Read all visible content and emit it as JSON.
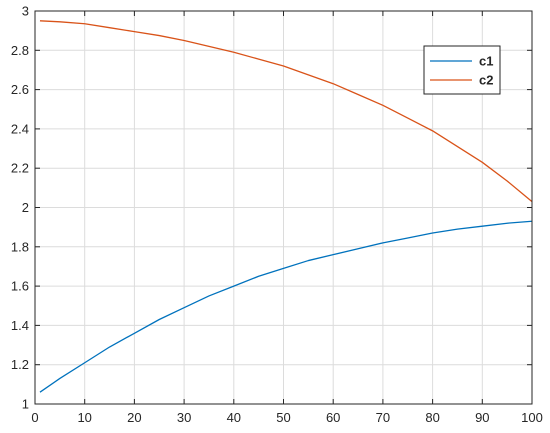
{
  "chart_data": {
    "type": "line",
    "title": "",
    "xlabel": "",
    "ylabel": "",
    "xlim": [
      0,
      100
    ],
    "ylim": [
      1,
      3
    ],
    "grid": true,
    "legend_position": "top-right",
    "xticks": [
      0,
      10,
      20,
      30,
      40,
      50,
      60,
      70,
      80,
      90,
      100
    ],
    "yticks": [
      1,
      1.2,
      1.4,
      1.6,
      1.8,
      2,
      2.2,
      2.4,
      2.6,
      2.8,
      3
    ],
    "x": [
      1,
      5,
      10,
      15,
      20,
      25,
      30,
      35,
      40,
      45,
      50,
      55,
      60,
      65,
      70,
      75,
      80,
      85,
      90,
      95,
      100
    ],
    "series": [
      {
        "name": "c1",
        "color": "#0072BD",
        "values": [
          1.06,
          1.13,
          1.21,
          1.29,
          1.36,
          1.43,
          1.49,
          1.55,
          1.6,
          1.65,
          1.69,
          1.73,
          1.76,
          1.79,
          1.82,
          1.845,
          1.87,
          1.89,
          1.905,
          1.92,
          1.93
        ]
      },
      {
        "name": "c2",
        "color": "#D95319",
        "values": [
          2.95,
          2.945,
          2.935,
          2.915,
          2.895,
          2.875,
          2.85,
          2.82,
          2.79,
          2.755,
          2.72,
          2.675,
          2.63,
          2.575,
          2.52,
          2.455,
          2.39,
          2.31,
          2.23,
          2.135,
          2.03
        ]
      }
    ]
  }
}
